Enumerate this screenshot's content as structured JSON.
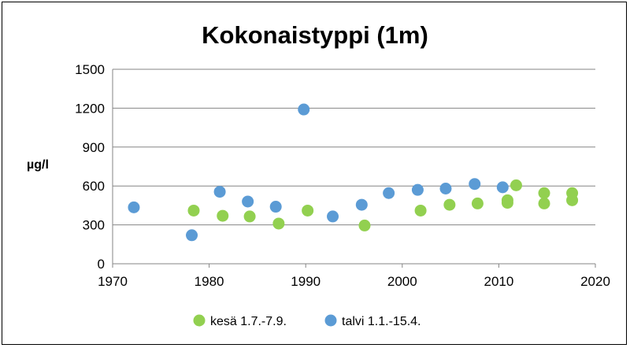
{
  "chart_data": {
    "type": "scatter",
    "title": "Kokonaistyppi (1m)",
    "xlabel": "",
    "ylabel": "µg/l",
    "xlim": [
      1970,
      2020
    ],
    "ylim": [
      0,
      1500
    ],
    "xticks": [
      "1970",
      "1980",
      "1990",
      "2000",
      "2010",
      "2020"
    ],
    "yticks": [
      "0",
      "300",
      "600",
      "900",
      "1200",
      "1500"
    ],
    "grid": "horizontal",
    "legend_position": "bottom",
    "series": [
      {
        "name": "kesä 1.7.-7.9.",
        "color": "#92d050",
        "points": [
          [
            1978.4,
            410
          ],
          [
            1981.4,
            370
          ],
          [
            1984.2,
            365
          ],
          [
            1987.2,
            310
          ],
          [
            1990.2,
            410
          ],
          [
            1996.1,
            295
          ],
          [
            2001.9,
            410
          ],
          [
            2004.9,
            455
          ],
          [
            2007.8,
            465
          ],
          [
            2010.9,
            490
          ],
          [
            2010.9,
            470
          ],
          [
            2011.8,
            605
          ],
          [
            2014.7,
            545
          ],
          [
            2014.7,
            465
          ],
          [
            2017.6,
            545
          ],
          [
            2017.6,
            490
          ]
        ]
      },
      {
        "name": "talvi 1.1.-15.4.",
        "color": "#5b9bd5",
        "points": [
          [
            1972.2,
            435
          ],
          [
            1978.2,
            220
          ],
          [
            1981.1,
            555
          ],
          [
            1984.0,
            480
          ],
          [
            1986.9,
            440
          ],
          [
            1989.8,
            1190
          ],
          [
            1992.8,
            365
          ],
          [
            1995.8,
            455
          ],
          [
            1998.6,
            545
          ],
          [
            2001.6,
            570
          ],
          [
            2004.5,
            580
          ],
          [
            2007.5,
            615
          ],
          [
            2010.4,
            590
          ]
        ]
      }
    ]
  }
}
